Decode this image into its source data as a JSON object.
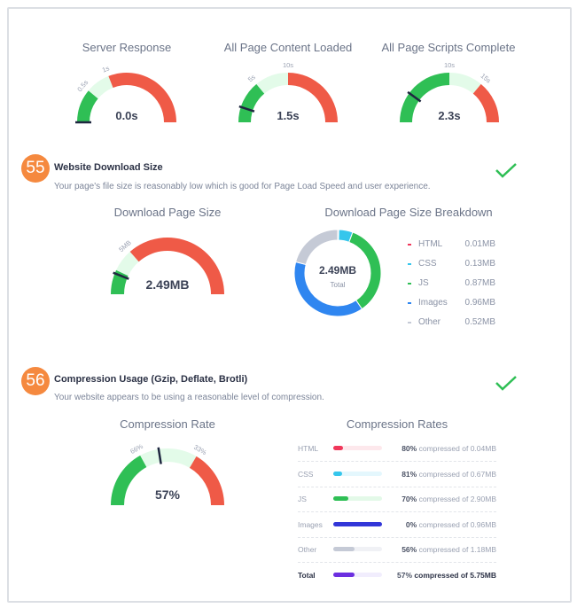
{
  "top_gauges": [
    {
      "title": "Server Response",
      "value": "0.0s",
      "ticks": [
        "0.5s",
        "1s"
      ]
    },
    {
      "title": "All Page Content Loaded",
      "value": "1.5s",
      "ticks": [
        "5s",
        "10s"
      ]
    },
    {
      "title": "All Page Scripts Complete",
      "value": "2.3s",
      "ticks": [
        "10s",
        "15s"
      ]
    }
  ],
  "section55": {
    "number": "55",
    "title": "Website Download Size",
    "description": "Your page's file size is reasonably low which is good for Page Load Speed and user experience.",
    "status": "pass",
    "gauge": {
      "title": "Download Page Size",
      "value": "2.49MB",
      "ticks": [
        "5MB"
      ]
    },
    "breakdown": {
      "title": "Download Page Size Breakdown",
      "total": "2.49MB",
      "total_label": "Total",
      "items": [
        {
          "label": "HTML",
          "value": "0.01MB",
          "mb": 0.01,
          "color": "#f0375a"
        },
        {
          "label": "CSS",
          "value": "0.13MB",
          "mb": 0.13,
          "color": "#36c6ec"
        },
        {
          "label": "JS",
          "value": "0.87MB",
          "mb": 0.87,
          "color": "#2fbf55"
        },
        {
          "label": "Images",
          "value": "0.96MB",
          "mb": 0.96,
          "color": "#2f86f0"
        },
        {
          "label": "Other",
          "value": "0.52MB",
          "mb": 0.52,
          "color": "#c5cad6"
        }
      ]
    }
  },
  "section56": {
    "number": "56",
    "title": "Compression Usage (Gzip, Deflate, Brotli)",
    "description": "Your website appears to be using a reasonable level of compression.",
    "status": "pass",
    "gauge": {
      "title": "Compression Rate",
      "value": "57%",
      "ticks": [
        "66%",
        "33%"
      ]
    },
    "rates": {
      "title": "Compression Rates",
      "rows": [
        {
          "label": "HTML",
          "percent": "80%",
          "text": "compressed of 0.04MB",
          "bar_fraction": 0.2,
          "color": "#f0375a",
          "track": "#fde8ec"
        },
        {
          "label": "CSS",
          "percent": "81%",
          "text": "compressed of 0.67MB",
          "bar_fraction": 0.19,
          "color": "#36c6ec",
          "track": "#e4f7fd"
        },
        {
          "label": "JS",
          "percent": "70%",
          "text": "compressed of 2.90MB",
          "bar_fraction": 0.3,
          "color": "#2fbf55",
          "track": "#e3f9e8"
        },
        {
          "label": "Images",
          "percent": "0%",
          "text": "compressed of 0.96MB",
          "bar_fraction": 1.0,
          "color": "#3236d8",
          "track": "#e6e7fb"
        },
        {
          "label": "Other",
          "percent": "56%",
          "text": "compressed of 1.18MB",
          "bar_fraction": 0.44,
          "color": "#c5cad6",
          "track": "#f0f1f5"
        },
        {
          "label": "Total",
          "percent": "57%",
          "text": "compressed of 5.75MB",
          "bar_fraction": 0.43,
          "color": "#6c2fe0",
          "track": "#f1edfd",
          "bold": true
        }
      ]
    }
  },
  "colors": {
    "good": "#2fbf55",
    "mid": "#e3fbe9",
    "bad": "#ef5a47",
    "needle": "#1f2740",
    "check": "#2fbf55",
    "badge": "#f5893f"
  }
}
